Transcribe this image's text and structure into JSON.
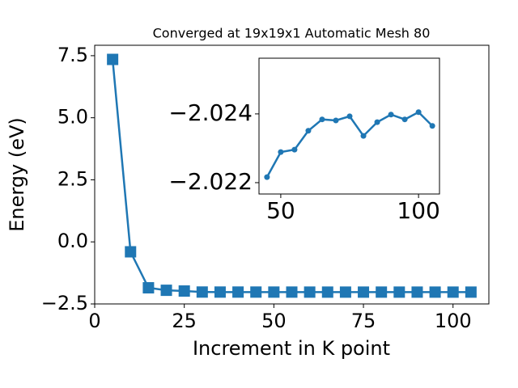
{
  "chart_data": [
    {
      "type": "line",
      "title": "Converged at 19x19x1 Automatic Mesh 80",
      "xlabel": "Increment in K point",
      "ylabel": "Energy (eV)",
      "x": [
        5,
        10,
        15,
        20,
        25,
        30,
        35,
        40,
        45,
        50,
        55,
        60,
        65,
        70,
        75,
        80,
        85,
        90,
        95,
        100,
        105
      ],
      "series": [
        {
          "color": "#1f77b4",
          "marker": "square",
          "values": [
            7.35,
            -0.4,
            -1.85,
            -1.95,
            -1.98,
            -2.021,
            -2.022,
            -2.022,
            -2.02216,
            -2.02289,
            -2.02296,
            -2.02351,
            -2.02384,
            -2.02381,
            -2.02393,
            -2.02336,
            -2.02376,
            -2.02398,
            -2.02384,
            -2.02405,
            -2.02365
          ]
        }
      ],
      "xlim": [
        0,
        110
      ],
      "ylim": [
        -2.5,
        7.92
      ],
      "xticks": [
        0,
        25,
        50,
        75,
        100
      ],
      "yticks": [
        {
          "value": -2.5,
          "label": "−2.5"
        },
        {
          "value": 0,
          "label": "0.0"
        },
        {
          "value": 2.5,
          "label": "2.5"
        },
        {
          "value": 5,
          "label": "5.0"
        },
        {
          "value": 7.5,
          "label": "7.5"
        }
      ]
    },
    {
      "type": "line",
      "inset": true,
      "yinvert": true,
      "x": [
        45,
        50,
        55,
        60,
        65,
        70,
        75,
        80,
        85,
        90,
        95,
        100,
        105
      ],
      "series": [
        {
          "color": "#1f77b4",
          "marker": "circle",
          "values": [
            -2.02216,
            -2.02289,
            -2.02296,
            -2.02351,
            -2.02384,
            -2.02381,
            -2.02393,
            -2.02336,
            -2.02376,
            -2.02398,
            -2.02384,
            -2.02405,
            -2.02365
          ]
        }
      ],
      "xlim": [
        42.1,
        107.6
      ],
      "ylim": [
        -2.02167,
        -2.02562
      ],
      "xticks": [
        50,
        100
      ],
      "yticks": [
        {
          "value": -2.024,
          "label": "−2.024"
        },
        {
          "value": -2.022,
          "label": "−2.022"
        }
      ]
    }
  ]
}
